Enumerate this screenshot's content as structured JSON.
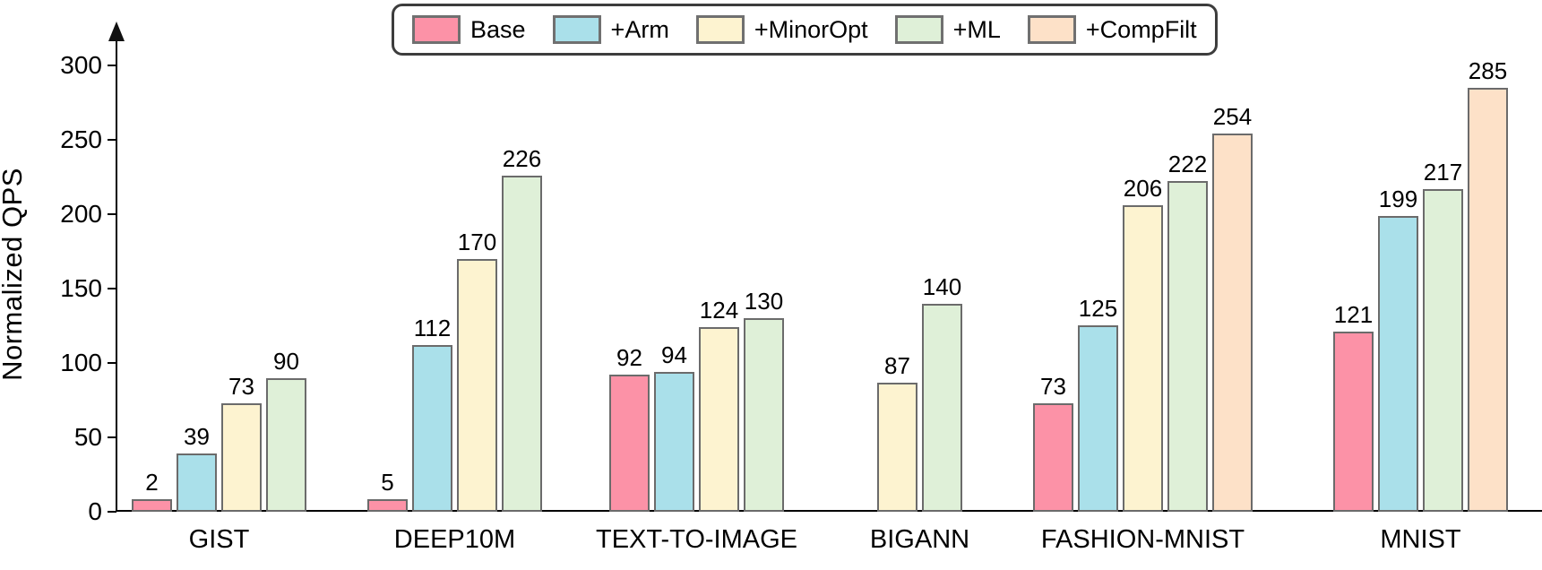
{
  "chart_data": {
    "type": "bar",
    "title": "",
    "xlabel": "",
    "ylabel": "Normalized QPS",
    "ylim": [
      0,
      300
    ],
    "yticks": [
      0,
      50,
      100,
      150,
      200,
      250,
      300
    ],
    "grid": false,
    "legend_position": "top-center",
    "axis_color": "#000000",
    "bar_border_color": "#6b6b6b",
    "categories": [
      "GIST",
      "DEEP10M",
      "TEXT-TO-IMAGE",
      "BIGANN",
      "FASHION-MNIST",
      "MNIST"
    ],
    "series": [
      {
        "name": "Base",
        "color": "#FC92A7",
        "values": [
          2,
          5,
          92,
          null,
          73,
          121
        ]
      },
      {
        "name": "+Arm",
        "color": "#AAE0EA",
        "values": [
          39,
          112,
          94,
          null,
          125,
          199
        ]
      },
      {
        "name": "+MinorOpt",
        "color": "#FDF3D0",
        "values": [
          73,
          170,
          124,
          87,
          206,
          null
        ]
      },
      {
        "name": "+ML",
        "color": "#DFF0D8",
        "values": [
          90,
          226,
          130,
          140,
          222,
          217
        ]
      },
      {
        "name": "+CompFilt",
        "color": "#FDE1C8",
        "values": [
          null,
          null,
          null,
          null,
          254,
          285
        ]
      }
    ]
  }
}
